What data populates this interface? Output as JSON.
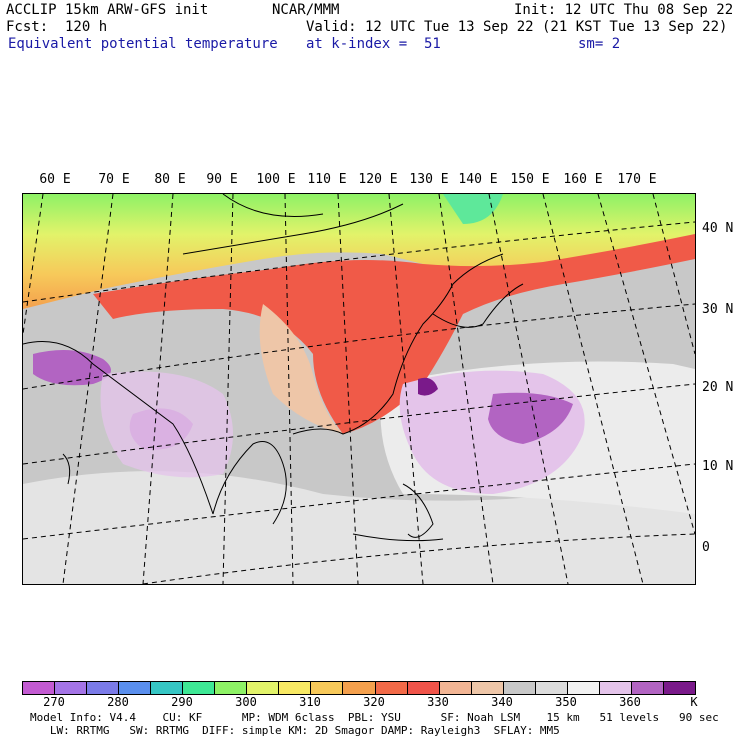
{
  "header": {
    "model": "ACCLIP 15km ARW-GFS init",
    "org": "NCAR/MMM",
    "init": "Init: 12 UTC Thu 08 Sep 22",
    "fcst": "Fcst:  120 h",
    "valid": "Valid: 12 UTC Tue 13 Sep 22 (21 KST Tue 13 Sep 22)",
    "field": "Equivalent potential temperature",
    "level": "at k-index =  51",
    "smooth": "sm= 2"
  },
  "map": {
    "lon_labels": [
      "60 E",
      "70 E",
      "80 E",
      "90 E",
      "100 E",
      "110 E",
      "120 E",
      "130 E",
      "140 E",
      "150 E",
      "160 E",
      "170 E"
    ],
    "lat_labels": [
      "40 N",
      "30 N",
      "20 N",
      "10 N",
      "0"
    ]
  },
  "colorbar": {
    "unit": "K",
    "labels": [
      "270",
      "280",
      "290",
      "300",
      "310",
      "320",
      "330",
      "340",
      "350",
      "360"
    ],
    "colors": [
      "#c35bd2",
      "#a474e6",
      "#7b7be8",
      "#5a8fee",
      "#36c6c4",
      "#3ee895",
      "#8ef266",
      "#e2f36a",
      "#f8e964",
      "#f7c95a",
      "#f4a04d",
      "#f26a48",
      "#f0544a",
      "#f2b594",
      "#eec6a8",
      "#c8c8c8",
      "#dcdcdc",
      "#f2f2f2",
      "#e4c4ea",
      "#b264c2",
      "#7a1a8a"
    ]
  },
  "footer": {
    "line1": "Model Info: V4.4    CU: KF      MP: WDM 6class  PBL: YSU      SF: Noah LSM    15 km   51 levels   90 sec",
    "line2": "   LW: RRTMG   SW: RRTMG  DIFF: simple KM: 2D Smagor DAMP: Rayleigh3  SFLAY: MM5"
  }
}
